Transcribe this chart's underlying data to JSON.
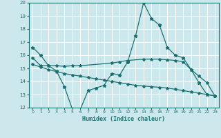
{
  "xlabel": "Humidex (Indice chaleur)",
  "bg_color": "#cce8ed",
  "grid_color": "#ffffff",
  "line_color": "#1a7070",
  "xlim": [
    -0.5,
    23.5
  ],
  "ylim": [
    12,
    20
  ],
  "xticks": [
    0,
    1,
    2,
    3,
    4,
    5,
    6,
    7,
    8,
    9,
    10,
    11,
    12,
    13,
    14,
    15,
    16,
    17,
    18,
    19,
    20,
    21,
    22,
    23
  ],
  "yticks": [
    12,
    13,
    14,
    15,
    16,
    17,
    18,
    19,
    20
  ],
  "line1_x": [
    0,
    1,
    2,
    3,
    4,
    5,
    6,
    7,
    8,
    9,
    10,
    11,
    12,
    13,
    14,
    15,
    16,
    17,
    18,
    19,
    20,
    21,
    22,
    23
  ],
  "line1_y": [
    16.6,
    16.0,
    15.2,
    14.8,
    13.6,
    11.9,
    11.85,
    13.3,
    13.5,
    13.7,
    14.6,
    14.5,
    15.5,
    17.5,
    20.0,
    18.8,
    18.3,
    16.6,
    16.0,
    15.8,
    14.9,
    13.9,
    13.0,
    12.9
  ],
  "line2_x": [
    0,
    1,
    2,
    3,
    4,
    5,
    6,
    10,
    11,
    12,
    14,
    15,
    16,
    17,
    18,
    19,
    20,
    21,
    22,
    23
  ],
  "line2_y": [
    15.8,
    15.2,
    15.2,
    15.2,
    15.15,
    15.2,
    15.2,
    15.4,
    15.5,
    15.6,
    15.7,
    15.7,
    15.7,
    15.65,
    15.6,
    15.5,
    14.9,
    14.4,
    13.9,
    12.9
  ],
  "line3_x": [
    0,
    1,
    2,
    3,
    4,
    5,
    6,
    7,
    8,
    9,
    10,
    11,
    12,
    13,
    14,
    15,
    16,
    17,
    18,
    19,
    20,
    21,
    22,
    23
  ],
  "line3_y": [
    15.3,
    15.1,
    14.9,
    14.75,
    14.6,
    14.5,
    14.4,
    14.3,
    14.2,
    14.1,
    14.0,
    13.9,
    13.8,
    13.7,
    13.65,
    13.6,
    13.55,
    13.5,
    13.4,
    13.3,
    13.2,
    13.1,
    13.0,
    12.9
  ]
}
